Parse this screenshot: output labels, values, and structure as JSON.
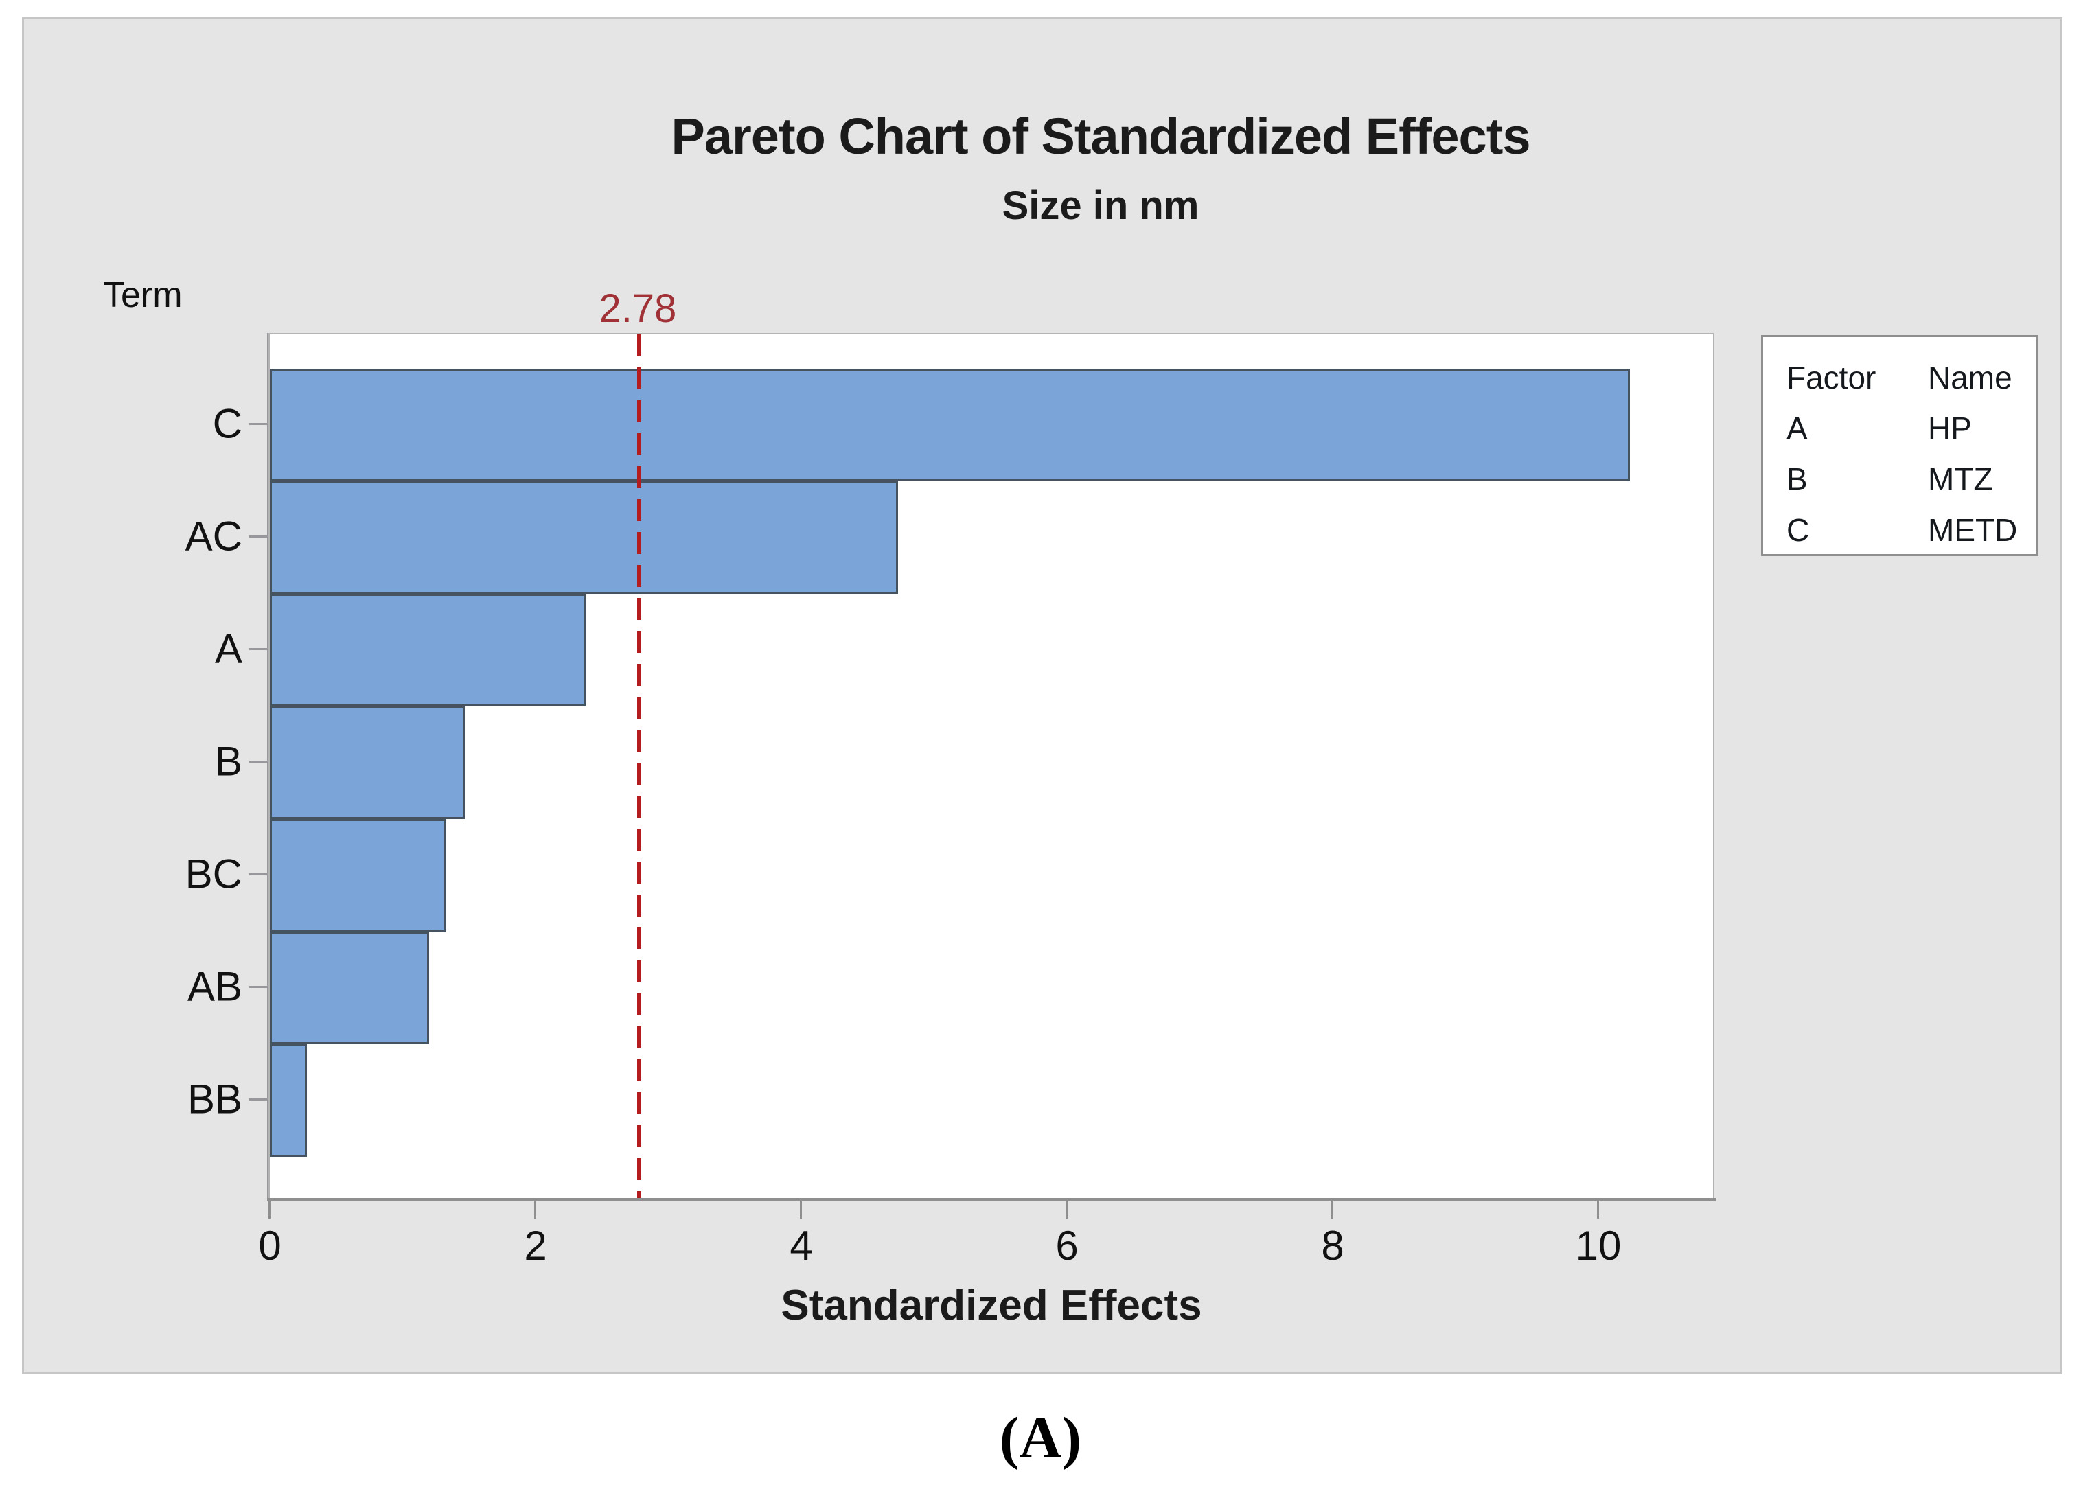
{
  "figure": {
    "caption": "(A)"
  },
  "chart_data": {
    "type": "bar",
    "orientation": "horizontal",
    "title": "Pareto Chart of Standardized Effects",
    "subtitle": "Size in nm",
    "y_axis_title": "Term",
    "x_axis_title": "Standardized Effects",
    "categories": [
      "C",
      "AC",
      "A",
      "B",
      "BC",
      "AB",
      "BB"
    ],
    "values": [
      10.24,
      4.73,
      2.38,
      1.47,
      1.33,
      1.2,
      0.28
    ],
    "x_ticks": [
      0,
      2,
      4,
      6,
      8,
      10
    ],
    "xlim": [
      0,
      10.9
    ],
    "grid": false,
    "reference_line": {
      "value": 2.78,
      "label": "2.78"
    },
    "colors": {
      "bar_fill": "#7ba5d9",
      "bar_border": "#45525f",
      "reference_line": "#b51c20",
      "reference_label": "#a03237",
      "panel_background": "#e5e5e5",
      "plot_background": "#ffffff"
    }
  },
  "legend": {
    "columns": [
      "Factor",
      "Name"
    ],
    "rows": [
      {
        "factor": "A",
        "name": "HP"
      },
      {
        "factor": "B",
        "name": "MTZ"
      },
      {
        "factor": "C",
        "name": "METD"
      }
    ]
  }
}
